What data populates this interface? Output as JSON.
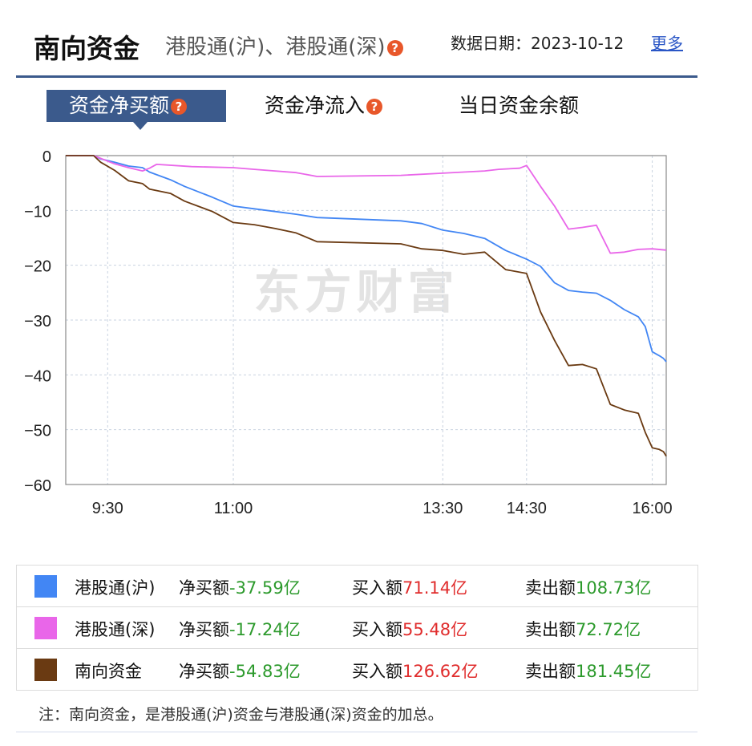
{
  "header": {
    "title": "南向资金",
    "subtitle": "港股通(沪)、港股通(深)",
    "date_label": "数据日期：2023-10-12",
    "more_link": "更多",
    "help_icon": "question-mark-icon"
  },
  "tabs": [
    {
      "label": "资金净买额",
      "active": true,
      "has_help": true
    },
    {
      "label": "资金净流入",
      "active": false,
      "has_help": true
    },
    {
      "label": "当日资金余额",
      "active": false,
      "has_help": false
    }
  ],
  "watermark": "东方财富",
  "chart_data": {
    "type": "line",
    "title": "",
    "xlabel": "",
    "ylabel": "",
    "ylim": [
      -60,
      0
    ],
    "yticks": [
      0,
      -10,
      -20,
      -30,
      -40,
      -50,
      -60
    ],
    "ytick_labels": [
      "0",
      "−10",
      "−20",
      "−30",
      "−40",
      "−50",
      "−60"
    ],
    "xlim": [
      "9:00",
      "16:10"
    ],
    "xticks": [
      "9:30",
      "11:00",
      "13:30",
      "14:30",
      "16:00"
    ],
    "grid": true,
    "legend": "table-below",
    "series": [
      {
        "name": "港股通(沪)",
        "color": "#4286f4",
        "points": [
          [
            "9:00",
            0
          ],
          [
            "9:20",
            0
          ],
          [
            "9:25",
            -0.6
          ],
          [
            "9:35",
            -1.2
          ],
          [
            "9:45",
            -1.9
          ],
          [
            "9:55",
            -2.2
          ],
          [
            "10:00",
            -3
          ],
          [
            "10:15",
            -4.4
          ],
          [
            "10:25",
            -5.6
          ],
          [
            "10:45",
            -7.6
          ],
          [
            "11:00",
            -9.2
          ],
          [
            "11:15",
            -9.7
          ],
          [
            "11:30",
            -10.2
          ],
          [
            "11:45",
            -10.7
          ],
          [
            "12:00",
            -11.3
          ],
          [
            "13:00",
            -11.9
          ],
          [
            "13:15",
            -12.4
          ],
          [
            "13:30",
            -13.6
          ],
          [
            "13:45",
            -14.2
          ],
          [
            "14:00",
            -15.1
          ],
          [
            "14:15",
            -17.3
          ],
          [
            "14:30",
            -18.9
          ],
          [
            "14:40",
            -20.2
          ],
          [
            "14:50",
            -23.2
          ],
          [
            "15:00",
            -24.6
          ],
          [
            "15:10",
            -24.9
          ],
          [
            "15:20",
            -25.1
          ],
          [
            "15:30",
            -26.4
          ],
          [
            "15:40",
            -28.1
          ],
          [
            "15:50",
            -29.4
          ],
          [
            "15:55",
            -31.2
          ],
          [
            "16:00",
            -35.8
          ],
          [
            "16:05",
            -36.5
          ],
          [
            "16:08",
            -37.0
          ],
          [
            "16:10",
            -37.6
          ]
        ]
      },
      {
        "name": "港股通(深)",
        "color": "#e966e9",
        "points": [
          [
            "9:00",
            0
          ],
          [
            "9:20",
            0
          ],
          [
            "9:25",
            -0.5
          ],
          [
            "9:35",
            -1.5
          ],
          [
            "9:45",
            -2.2
          ],
          [
            "9:55",
            -2.8
          ],
          [
            "10:00",
            -2.3
          ],
          [
            "10:05",
            -1.6
          ],
          [
            "10:30",
            -2.0
          ],
          [
            "11:00",
            -2.2
          ],
          [
            "11:15",
            -2.5
          ],
          [
            "11:45",
            -3.1
          ],
          [
            "12:00",
            -3.8
          ],
          [
            "13:00",
            -3.6
          ],
          [
            "13:30",
            -3.2
          ],
          [
            "14:00",
            -2.8
          ],
          [
            "14:10",
            -2.5
          ],
          [
            "14:25",
            -2.3
          ],
          [
            "14:30",
            -1.8
          ],
          [
            "14:40",
            -5.6
          ],
          [
            "14:50",
            -9.2
          ],
          [
            "15:00",
            -13.4
          ],
          [
            "15:10",
            -13.1
          ],
          [
            "15:20",
            -12.7
          ],
          [
            "15:30",
            -17.8
          ],
          [
            "15:40",
            -17.6
          ],
          [
            "15:50",
            -17.1
          ],
          [
            "16:00",
            -17.0
          ],
          [
            "16:10",
            -17.24
          ]
        ]
      },
      {
        "name": "南向资金",
        "color": "#6a3a12",
        "points": [
          [
            "9:00",
            0
          ],
          [
            "9:20",
            0
          ],
          [
            "9:25",
            -1.2
          ],
          [
            "9:35",
            -2.7
          ],
          [
            "9:45",
            -4.6
          ],
          [
            "9:55",
            -5.1
          ],
          [
            "10:00",
            -6.1
          ],
          [
            "10:15",
            -6.9
          ],
          [
            "10:25",
            -8.3
          ],
          [
            "10:45",
            -10.2
          ],
          [
            "11:00",
            -12.2
          ],
          [
            "11:15",
            -12.6
          ],
          [
            "11:30",
            -13.3
          ],
          [
            "11:45",
            -14.1
          ],
          [
            "12:00",
            -15.7
          ],
          [
            "13:00",
            -16.1
          ],
          [
            "13:15",
            -17.0
          ],
          [
            "13:30",
            -17.3
          ],
          [
            "13:45",
            -18.0
          ],
          [
            "14:00",
            -17.6
          ],
          [
            "14:15",
            -20.8
          ],
          [
            "14:30",
            -21.5
          ],
          [
            "14:40",
            -28.5
          ],
          [
            "14:50",
            -33.7
          ],
          [
            "15:00",
            -38.3
          ],
          [
            "15:10",
            -38.1
          ],
          [
            "15:20",
            -38.9
          ],
          [
            "15:30",
            -45.4
          ],
          [
            "15:40",
            -46.4
          ],
          [
            "15:50",
            -47.0
          ],
          [
            "15:55",
            -50.5
          ],
          [
            "16:00",
            -53.3
          ],
          [
            "16:05",
            -53.6
          ],
          [
            "16:08",
            -54.0
          ],
          [
            "16:10",
            -54.83
          ]
        ]
      }
    ]
  },
  "legend": [
    {
      "name": "港股通(沪)",
      "color": "#4286f4",
      "net_label": "净买额",
      "net_value": "-37.59亿",
      "buy_label": "买入额",
      "buy_value": "71.14亿",
      "sell_label": "卖出额",
      "sell_value": "108.73亿"
    },
    {
      "name": "港股通(深)",
      "color": "#e966e9",
      "net_label": "净买额",
      "net_value": "-17.24亿",
      "buy_label": "买入额",
      "buy_value": "55.48亿",
      "sell_label": "卖出额",
      "sell_value": "72.72亿"
    },
    {
      "name": "南向资金",
      "color": "#6a3a12",
      "net_label": "净买额",
      "net_value": "-54.83亿",
      "buy_label": "买入额",
      "buy_value": "126.62亿",
      "sell_label": "卖出额",
      "sell_value": "181.45亿"
    }
  ],
  "note": "注：南向资金，是港股通(沪)资金与港股通(深)资金的加总。"
}
